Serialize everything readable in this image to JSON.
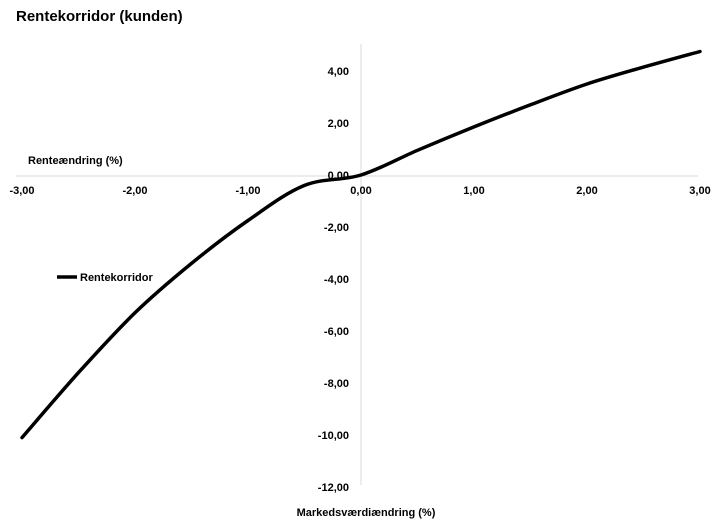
{
  "chart_data": {
    "type": "line",
    "title": "Rentekorridor (kunden)",
    "xlabel": "Renteændring (%)",
    "ylabel": "Markedsværdiændring (%)",
    "xlim": [
      -3,
      3
    ],
    "ylim": [
      -12,
      4.8
    ],
    "x_ticks": [
      "-3,00",
      "-2,00",
      "-1,00",
      "0,00",
      "1,00",
      "2,00",
      "3,00"
    ],
    "y_ticks": [
      "4,00",
      "2,00",
      "0,00",
      "-2,00",
      "-4,00",
      "-6,00",
      "-8,00",
      "-10,00",
      "-12,00"
    ],
    "grid": false,
    "legend_position": "left",
    "series": [
      {
        "name": "Rentekorridor",
        "color": "#000000",
        "x": [
          -3,
          -2.5,
          -2,
          -1.5,
          -1,
          -0.5,
          0,
          0.5,
          1,
          1.5,
          2,
          2.5,
          3
        ],
        "values": [
          -10.1,
          -7.6,
          -5.3,
          -3.4,
          -1.75,
          -0.4,
          0,
          0.95,
          1.85,
          2.7,
          3.5,
          4.15,
          4.75
        ]
      }
    ]
  }
}
